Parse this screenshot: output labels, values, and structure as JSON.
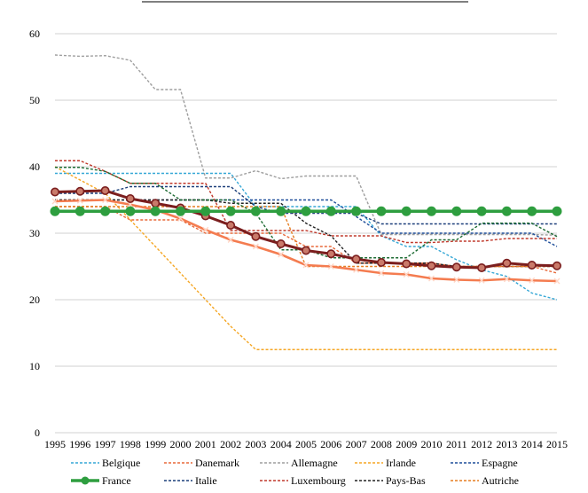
{
  "chart_data": {
    "type": "line",
    "title": "",
    "xlabel": "",
    "ylabel": "",
    "ylim": [
      0,
      60
    ],
    "yticks": [
      0,
      10,
      20,
      30,
      40,
      50,
      60
    ],
    "grid": true,
    "legend_position": "bottom",
    "x": [
      "1995",
      "1996",
      "1997",
      "1998",
      "1999",
      "2000",
      "2001",
      "2002",
      "2003",
      "2004",
      "2005",
      "2006",
      "2007",
      "2008",
      "2009",
      "2010",
      "2011",
      "2012",
      "2013",
      "2014",
      "2015"
    ],
    "series": [
      {
        "name": "Belgique",
        "color": "#35a7d6",
        "style": "dashed",
        "values": [
          39,
          39,
          39,
          39,
          39,
          39,
          39,
          39,
          34,
          34,
          34,
          34,
          34,
          29.6,
          28,
          28,
          26,
          24.5,
          23.5,
          21,
          20
        ]
      },
      {
        "name": "Danemark",
        "color": "#e8693a",
        "style": "dashed",
        "values": [
          34,
          34,
          34,
          32,
          32,
          32,
          30,
          30,
          30,
          30,
          28,
          28,
          25.5,
          25.5,
          25.5,
          25.5,
          25,
          25,
          25,
          25,
          24
        ]
      },
      {
        "name": "Allemagne",
        "color": "#9e9e9e",
        "style": "dashed",
        "values": [
          56.8,
          56.6,
          56.7,
          56,
          51.6,
          51.6,
          38.3,
          38.3,
          39.4,
          38.2,
          38.6,
          38.6,
          38.6,
          29.8,
          29.8,
          29.8,
          29.8,
          29.8,
          29.8,
          29.8,
          29.7
        ]
      },
      {
        "name": "Irlande",
        "color": "#f5a623",
        "style": "dashed",
        "values": [
          40,
          38,
          36,
          32,
          28,
          24,
          20,
          16,
          12.5,
          12.5,
          12.5,
          12.5,
          12.5,
          12.5,
          12.5,
          12.5,
          12.5,
          12.5,
          12.5,
          12.5,
          12.5
        ]
      },
      {
        "name": "Espagne",
        "color": "#1f4e9a",
        "style": "dashed",
        "values": [
          35,
          35,
          35,
          35,
          35,
          35,
          35,
          35,
          35,
          35,
          35,
          35,
          32.5,
          30,
          30,
          30,
          30,
          30,
          30,
          30,
          28
        ]
      },
      {
        "name": "France",
        "color": "#2e9e3f",
        "style": "solid-marker",
        "values": [
          33.3,
          33.3,
          33.3,
          33.3,
          33.3,
          33.3,
          33.3,
          33.3,
          33.3,
          33.3,
          33.3,
          33.3,
          33.3,
          33.3,
          33.3,
          33.3,
          33.3,
          33.3,
          33.3,
          33.3,
          33.3
        ]
      },
      {
        "name": "Italie",
        "color": "#1c3f7a",
        "style": "dashed",
        "values": [
          36,
          36,
          36,
          37,
          37,
          37,
          37,
          37,
          34,
          33,
          33,
          33,
          33,
          31.4,
          31.4,
          31.4,
          31.4,
          31.4,
          31.4,
          31.4,
          31.4
        ]
      },
      {
        "name": "Luxembourg",
        "color": "#c0392b",
        "style": "dashed",
        "values": [
          40.9,
          40.9,
          39.3,
          37.5,
          37.5,
          37.5,
          37.5,
          30.4,
          30.4,
          30.4,
          30.4,
          29.6,
          29.6,
          29.6,
          28.6,
          28.6,
          28.8,
          28.8,
          29.2,
          29.2,
          29.2
        ]
      },
      {
        "name": "Pays-Bas",
        "color": "#222222",
        "style": "dashed",
        "values": [
          35,
          35,
          35,
          35,
          35,
          35,
          35,
          34.5,
          34.5,
          34.5,
          31.5,
          29.6,
          25.5,
          25.5,
          25.5,
          25.5,
          25,
          25,
          25,
          25,
          25
        ]
      },
      {
        "name": "Autriche",
        "color": "#e67e22",
        "style": "dashed",
        "values": [
          34,
          34,
          34,
          34,
          34,
          34,
          34,
          34,
          34,
          34,
          25,
          25,
          25,
          25,
          25,
          25,
          25,
          25,
          25,
          25,
          25
        ]
      },
      {
        "name": "",
        "color": "#7b1e1e",
        "style": "solid-marker",
        "values": [
          36.2,
          36.3,
          36.4,
          35.2,
          34.5,
          33.8,
          32.6,
          31.2,
          29.5,
          28.4,
          27.4,
          26.9,
          26.1,
          25.6,
          25.4,
          25.1,
          24.9,
          24.8,
          25.5,
          25.2,
          25.1
        ]
      },
      {
        "name": "",
        "color": "#f47c50",
        "style": "solid-x",
        "values": [
          34.8,
          34.9,
          35,
          34.3,
          33.5,
          32.2,
          30.5,
          29,
          28,
          26.8,
          25.2,
          25,
          24.5,
          24,
          23.8,
          23.2,
          23,
          22.9,
          23.1,
          22.9,
          22.8
        ]
      },
      {
        "name": "",
        "color": "#1d6b33",
        "style": "dashed",
        "values": [
          39.9,
          39.9,
          39.3,
          37.5,
          37.5,
          35,
          35,
          35,
          33,
          27.5,
          27.5,
          26.3,
          26.3,
          26.3,
          26.3,
          29,
          29,
          31.5,
          31.5,
          31.5,
          29.5
        ]
      }
    ],
    "legend": [
      {
        "label": "Belgique",
        "series": 0
      },
      {
        "label": "Danemark",
        "series": 1
      },
      {
        "label": "Allemagne",
        "series": 2
      },
      {
        "label": "Irlande",
        "series": 3
      },
      {
        "label": "Espagne",
        "series": 4
      },
      {
        "label": "France",
        "series": 5
      },
      {
        "label": "Italie",
        "series": 6
      },
      {
        "label": "Luxembourg",
        "series": 7
      },
      {
        "label": "Pays-Bas",
        "series": 8
      },
      {
        "label": "Autriche",
        "series": 9
      }
    ]
  }
}
